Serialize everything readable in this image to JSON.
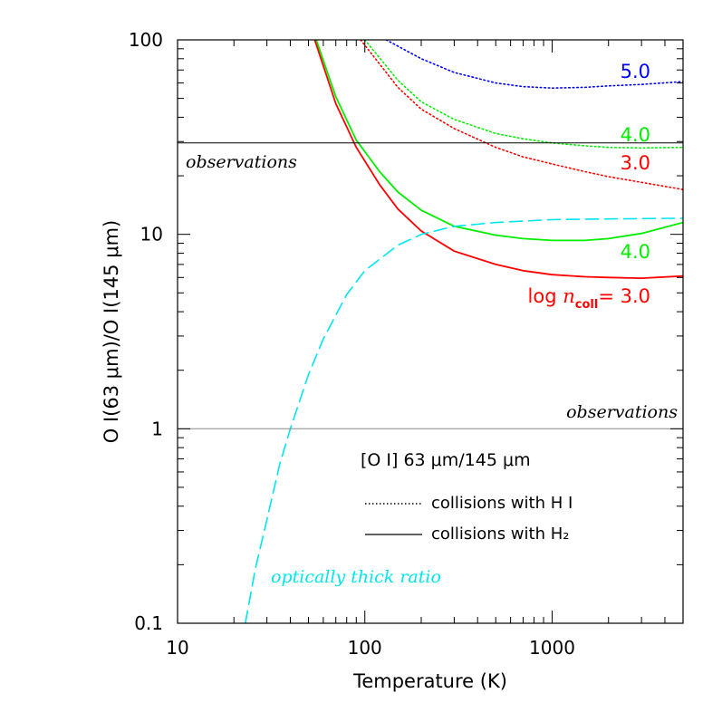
{
  "chart_data": {
    "type": "line",
    "xlabel": "Temperature (K)",
    "ylabel": "O I(63 μm)/O I(145 μm)",
    "x_scale": "log",
    "y_scale": "log",
    "xlim": [
      10,
      5000
    ],
    "ylim": [
      0.1,
      100
    ],
    "x_ticks": [
      10,
      100,
      1000
    ],
    "x_tick_labels": [
      "10",
      "100",
      "1000"
    ],
    "y_ticks": [
      0.1,
      1,
      10,
      100
    ],
    "y_tick_labels": [
      "0.1",
      "1",
      "10",
      "100"
    ],
    "grid": false,
    "legend": {
      "title": "[O I] 63 μm/145 μm",
      "entries": [
        {
          "style": "dotted",
          "label": "collisions with H I"
        },
        {
          "style": "solid",
          "label": "collisions with H₂"
        }
      ]
    },
    "observations": [
      {
        "value": 29.5,
        "label": "observations",
        "label_position": "left"
      },
      {
        "value": 1.0,
        "label": "observations",
        "label_position": "right"
      }
    ],
    "series": [
      {
        "name": "5.0",
        "style": "dotted",
        "color": "#0000ff",
        "x": [
          130,
          200,
          300,
          500,
          700,
          1000,
          1500,
          2000,
          3000,
          5000
        ],
        "y": [
          100,
          80,
          68,
          60,
          57.5,
          56.5,
          57,
          58,
          59,
          61
        ]
      },
      {
        "name": "4.0",
        "style": "dotted",
        "color": "#00ee00",
        "x": [
          100,
          150,
          200,
          300,
          500,
          700,
          1000,
          1500,
          2000,
          3000,
          5000
        ],
        "y": [
          100,
          62,
          48,
          39,
          33,
          31,
          29.5,
          28.5,
          28,
          27.8,
          28
        ]
      },
      {
        "name": "3.0",
        "style": "dotted",
        "color": "#ff0000",
        "x": [
          95,
          150,
          200,
          300,
          500,
          700,
          1000,
          1500,
          2000,
          3000,
          5000
        ],
        "y": [
          100,
          57,
          44,
          35,
          28,
          25,
          23,
          21,
          19.8,
          18.5,
          17
        ]
      },
      {
        "name": "4.0",
        "style": "solid",
        "color": "#00ee00",
        "x": [
          55,
          70,
          90,
          120,
          150,
          200,
          300,
          500,
          700,
          1000,
          1500,
          2000,
          3000,
          5000
        ],
        "y": [
          100,
          51,
          30.5,
          21,
          16.5,
          13.3,
          11,
          9.9,
          9.5,
          9.3,
          9.3,
          9.5,
          10.1,
          11.5
        ]
      },
      {
        "name": "3.0",
        "style": "solid",
        "color": "#ff0000",
        "x": [
          54,
          70,
          90,
          120,
          150,
          200,
          300,
          500,
          700,
          1000,
          1500,
          2000,
          3000,
          5000
        ],
        "y": [
          100,
          47,
          28,
          18,
          13.5,
          10.4,
          8.2,
          7,
          6.5,
          6.2,
          6.05,
          6.0,
          5.95,
          6.1
        ]
      },
      {
        "name": "optically thick ratio",
        "style": "dashed",
        "color": "#00e5ee",
        "x": [
          23,
          26,
          30,
          35,
          40,
          50,
          60,
          80,
          100,
          150,
          200,
          300,
          500,
          1000,
          2000,
          5000
        ],
        "y": [
          0.1,
          0.19,
          0.34,
          0.65,
          1.0,
          1.9,
          2.9,
          4.9,
          6.5,
          8.8,
          10.0,
          11.0,
          11.5,
          11.9,
          12.0,
          12.1
        ]
      }
    ],
    "curve_labels": [
      {
        "text": "5.0",
        "color": "#0000ff"
      },
      {
        "text": "4.0",
        "color": "#00ee00"
      },
      {
        "text": "3.0",
        "color": "#ff0000"
      },
      {
        "text": "4.0",
        "color": "#00ee00"
      },
      {
        "prefix": "log ",
        "variable": "n",
        "subscript": "coll",
        "suffix": "= 3.0",
        "color": "#ff0000"
      },
      {
        "text": "optically thick ratio",
        "color": "#00e5ee"
      }
    ]
  }
}
